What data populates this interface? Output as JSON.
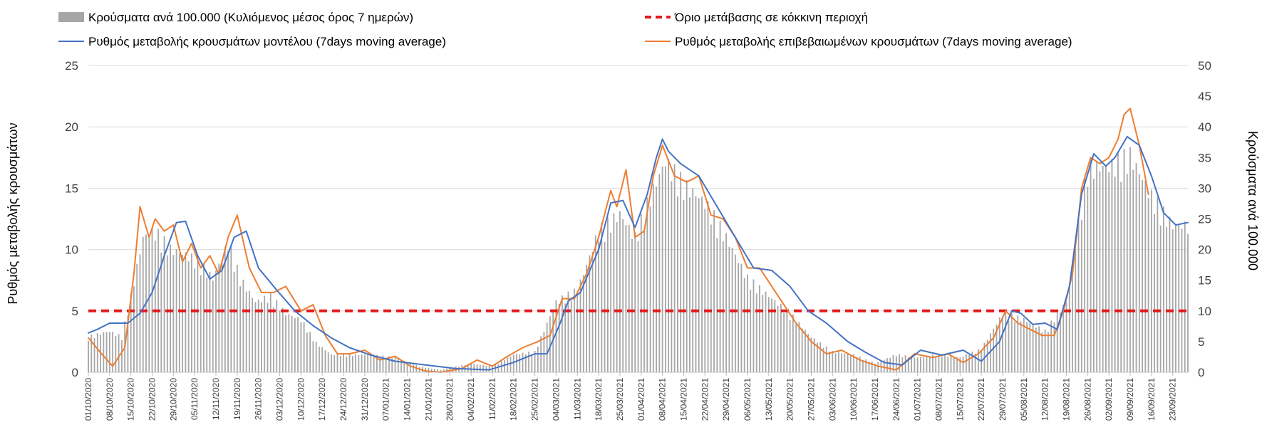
{
  "chart_data": {
    "type": "bar+line",
    "title": "",
    "y_left": {
      "label": "Ρυθμός μεταβολής κρουσμάτων",
      "range": [
        0,
        25
      ],
      "ticks": [
        "0",
        "5",
        "10",
        "15",
        "20",
        "25"
      ]
    },
    "y_right": {
      "label": "Κρούσματα ανά 100.000",
      "range": [
        0,
        50
      ],
      "ticks": [
        "0",
        "5",
        "10",
        "15",
        "20",
        "25",
        "30",
        "35",
        "40",
        "45",
        "50"
      ]
    },
    "x_range": [
      "2020-10-01",
      "2021-09-28"
    ],
    "x_tick_labels": [
      "01/10/2020",
      "08/10/2020",
      "15/10/2020",
      "22/10/2020",
      "29/10/2020",
      "05/11/2020",
      "12/11/2020",
      "19/11/2020",
      "26/11/2020",
      "03/12/2020",
      "10/12/2020",
      "17/12/2020",
      "24/12/2020",
      "31/12/2020",
      "07/01/2021",
      "14/01/2021",
      "21/01/2021",
      "28/01/2021",
      "04/02/2021",
      "11/02/2021",
      "18/02/2021",
      "25/02/2021",
      "04/03/2021",
      "11/03/2021",
      "18/03/2021",
      "25/03/2021",
      "01/04/2021",
      "08/04/2021",
      "15/04/2021",
      "22/04/2021",
      "29/04/2021",
      "06/05/2021",
      "13/05/2021",
      "20/05/2021",
      "27/05/2021",
      "03/06/2021",
      "10/06/2021",
      "17/06/2021",
      "24/06/2021",
      "01/07/2021",
      "08/07/2021",
      "15/07/2021",
      "22/07/2021",
      "29/07/2021",
      "05/08/2021",
      "12/08/2021",
      "19/08/2021",
      "26/08/2021",
      "02/09/2021",
      "09/09/2021",
      "16/09/2021",
      "23/09/2021"
    ],
    "gridlines": "horizontal",
    "legend": {
      "placement": "top",
      "items": [
        {
          "key": "bars",
          "label": "Κρούσματα ανά 100.000 (Κυλιόμενος μέσος όρος 7 ημερών)",
          "color": "#a6a6a6"
        },
        {
          "key": "threshold",
          "label": "Όριο μετάβασης σε κόκκινη περιοχή",
          "color": "#e31a1c"
        },
        {
          "key": "model",
          "label": "Ρυθμός μεταβολής κρουσμάτων μοντέλου (7days moving average)",
          "color": "#4472c4"
        },
        {
          "key": "confirmed",
          "label": "Ρυθμός μεταβολής επιβεβαιωμένων κρουσμάτων (7days moving average)",
          "color": "#ed7d31"
        }
      ]
    },
    "series": [
      {
        "key": "bars",
        "name": "Κρούσματα ανά 100.000 (Κυλιόμενος μέσος όρος 7 ημερών)",
        "type": "bar",
        "axis": "right",
        "x": [
          "2020-10-01",
          "2020-10-08",
          "2020-10-12",
          "2020-10-15",
          "2020-10-19",
          "2020-10-23",
          "2020-10-28",
          "2020-11-02",
          "2020-11-06",
          "2020-11-11",
          "2020-11-16",
          "2020-11-20",
          "2020-11-25",
          "2020-11-30",
          "2020-12-05",
          "2020-12-10",
          "2020-12-15",
          "2020-12-20",
          "2020-12-25",
          "2021-01-01",
          "2021-01-10",
          "2021-01-18",
          "2021-01-25",
          "2021-02-04",
          "2021-02-11",
          "2021-02-18",
          "2021-02-25",
          "2021-03-04",
          "2021-03-11",
          "2021-03-18",
          "2021-03-25",
          "2021-03-30",
          "2021-04-04",
          "2021-04-09",
          "2021-04-15",
          "2021-04-22",
          "2021-04-29",
          "2021-05-06",
          "2021-05-13",
          "2021-05-20",
          "2021-05-27",
          "2021-06-03",
          "2021-06-10",
          "2021-06-17",
          "2021-06-24",
          "2021-07-01",
          "2021-07-08",
          "2021-07-15",
          "2021-07-22",
          "2021-07-29",
          "2021-08-05",
          "2021-08-12",
          "2021-08-19",
          "2021-08-26",
          "2021-09-02",
          "2021-09-09",
          "2021-09-16",
          "2021-09-23",
          "2021-09-28"
        ],
        "values": [
          6,
          7,
          6,
          13,
          23,
          24,
          21,
          20,
          19,
          16,
          22,
          16,
          12,
          13,
          10,
          9,
          5,
          3,
          3,
          3,
          2.5,
          1,
          0.4,
          1.5,
          1,
          3,
          3.5,
          12,
          14,
          24,
          27,
          23,
          30,
          36,
          32,
          29,
          23,
          16,
          13,
          10,
          6,
          3.5,
          3,
          1.5,
          3,
          2.5,
          3,
          2.5,
          4,
          10,
          9,
          7,
          12,
          35,
          35,
          37,
          30,
          25,
          25
        ]
      },
      {
        "key": "model",
        "name": "Ρυθμός μεταβολής κρουσμάτων μοντέλου (7days moving average)",
        "type": "line",
        "axis": "left",
        "x": [
          "2020-10-01",
          "2020-10-04",
          "2020-10-08",
          "2020-10-14",
          "2020-10-18",
          "2020-10-22",
          "2020-10-26",
          "2020-10-30",
          "2020-11-02",
          "2020-11-06",
          "2020-11-10",
          "2020-11-14",
          "2020-11-18",
          "2020-11-22",
          "2020-11-26",
          "2020-12-02",
          "2020-12-08",
          "2020-12-14",
          "2020-12-20",
          "2020-12-26",
          "2021-01-02",
          "2021-01-10",
          "2021-01-20",
          "2021-01-30",
          "2021-02-10",
          "2021-02-18",
          "2021-02-25",
          "2021-03-01",
          "2021-03-05",
          "2021-03-08",
          "2021-03-12",
          "2021-03-18",
          "2021-03-22",
          "2021-03-26",
          "2021-03-30",
          "2021-04-03",
          "2021-04-06",
          "2021-04-08",
          "2021-04-10",
          "2021-04-14",
          "2021-04-20",
          "2021-04-26",
          "2021-05-02",
          "2021-05-08",
          "2021-05-14",
          "2021-05-20",
          "2021-05-26",
          "2021-06-01",
          "2021-06-08",
          "2021-06-14",
          "2021-06-20",
          "2021-06-26",
          "2021-07-02",
          "2021-07-09",
          "2021-07-16",
          "2021-07-22",
          "2021-07-28",
          "2021-08-01",
          "2021-08-04",
          "2021-08-08",
          "2021-08-12",
          "2021-08-16",
          "2021-08-20",
          "2021-08-24",
          "2021-08-28",
          "2021-09-01",
          "2021-09-04",
          "2021-09-08",
          "2021-09-12",
          "2021-09-16",
          "2021-09-20",
          "2021-09-24",
          "2021-09-28"
        ],
        "values": [
          3.2,
          3.5,
          4.0,
          4.0,
          4.8,
          6.5,
          9.5,
          12.2,
          12.3,
          9.5,
          7.6,
          8.3,
          11.0,
          11.5,
          8.5,
          6.7,
          5.0,
          3.8,
          2.8,
          2.0,
          1.4,
          0.9,
          0.6,
          0.3,
          0.2,
          0.8,
          1.5,
          1.5,
          3.8,
          5.8,
          6.5,
          10.0,
          13.8,
          14.0,
          11.8,
          14.5,
          17.5,
          19.0,
          18.0,
          17.0,
          16.0,
          13.5,
          11.0,
          8.5,
          8.3,
          7.0,
          5.0,
          4.0,
          2.5,
          1.6,
          0.8,
          0.6,
          1.8,
          1.4,
          1.8,
          0.9,
          2.5,
          5.0,
          4.8,
          3.9,
          4.0,
          3.5,
          7.0,
          14.5,
          17.8,
          16.8,
          17.5,
          19.2,
          18.5,
          16.0,
          13.0,
          12.0,
          12.2
        ]
      },
      {
        "key": "confirmed",
        "name": "Ρυθμός μεταβολής επιβεβαιωμένων κρουσμάτων (7days moving average)",
        "type": "line",
        "axis": "left",
        "x": [
          "2020-10-01",
          "2020-10-05",
          "2020-10-09",
          "2020-10-13",
          "2020-10-16",
          "2020-10-18",
          "2020-10-21",
          "2020-10-23",
          "2020-10-26",
          "2020-10-29",
          "2020-11-01",
          "2020-11-04",
          "2020-11-07",
          "2020-11-10",
          "2020-11-13",
          "2020-11-16",
          "2020-11-19",
          "2020-11-23",
          "2020-11-27",
          "2020-12-01",
          "2020-12-05",
          "2020-12-10",
          "2020-12-14",
          "2020-12-18",
          "2020-12-22",
          "2020-12-26",
          "2020-12-31",
          "2021-01-05",
          "2021-01-10",
          "2021-01-15",
          "2021-01-20",
          "2021-01-25",
          "2021-02-01",
          "2021-02-06",
          "2021-02-11",
          "2021-02-16",
          "2021-02-21",
          "2021-02-26",
          "2021-03-02",
          "2021-03-06",
          "2021-03-10",
          "2021-03-14",
          "2021-03-18",
          "2021-03-22",
          "2021-03-24",
          "2021-03-27",
          "2021-03-30",
          "2021-04-02",
          "2021-04-05",
          "2021-04-08",
          "2021-04-12",
          "2021-04-16",
          "2021-04-20",
          "2021-04-24",
          "2021-04-28",
          "2021-05-02",
          "2021-05-06",
          "2021-05-10",
          "2021-05-14",
          "2021-05-18",
          "2021-05-22",
          "2021-05-27",
          "2021-06-01",
          "2021-06-06",
          "2021-06-12",
          "2021-06-18",
          "2021-06-24",
          "2021-06-30",
          "2021-07-06",
          "2021-07-11",
          "2021-07-16",
          "2021-07-21",
          "2021-07-26",
          "2021-07-30",
          "2021-08-03",
          "2021-08-07",
          "2021-08-11",
          "2021-08-15",
          "2021-08-18",
          "2021-08-21",
          "2021-08-24",
          "2021-08-27",
          "2021-08-30",
          "2021-09-02",
          "2021-09-05",
          "2021-09-07",
          "2021-09-09",
          "2021-09-12",
          "2021-09-15"
        ],
        "values": [
          2.8,
          1.6,
          0.5,
          2.0,
          8.0,
          13.5,
          11.0,
          12.5,
          11.5,
          12.0,
          9.0,
          10.5,
          8.5,
          9.5,
          8.0,
          11.0,
          12.8,
          8.5,
          6.5,
          6.5,
          7.0,
          5.0,
          5.5,
          3.0,
          1.5,
          1.5,
          1.8,
          1.0,
          1.3,
          0.5,
          0.1,
          0.0,
          0.3,
          1.0,
          0.5,
          1.3,
          2.0,
          2.5,
          3.0,
          6.0,
          6.0,
          8.0,
          11.0,
          14.8,
          13.5,
          16.5,
          11.0,
          11.5,
          16.0,
          18.5,
          16.0,
          15.5,
          16.0,
          12.8,
          12.5,
          11.0,
          8.5,
          8.5,
          7.0,
          5.5,
          4.0,
          2.5,
          1.5,
          1.8,
          1.0,
          0.5,
          0.2,
          1.5,
          1.2,
          1.5,
          0.8,
          1.5,
          2.8,
          5.0,
          4.0,
          3.5,
          3.0,
          3.0,
          5.0,
          8.0,
          15.0,
          17.5,
          17.0,
          17.5,
          19.0,
          21.0,
          21.5,
          18.5,
          14.5
        ]
      },
      {
        "key": "threshold",
        "name": "Όριο μετάβασης σε κόκκινη περιοχή",
        "type": "line",
        "style": "dashed",
        "axis": "left",
        "x": [
          "2020-10-01",
          "2021-09-28"
        ],
        "values": [
          5,
          5
        ]
      }
    ]
  }
}
